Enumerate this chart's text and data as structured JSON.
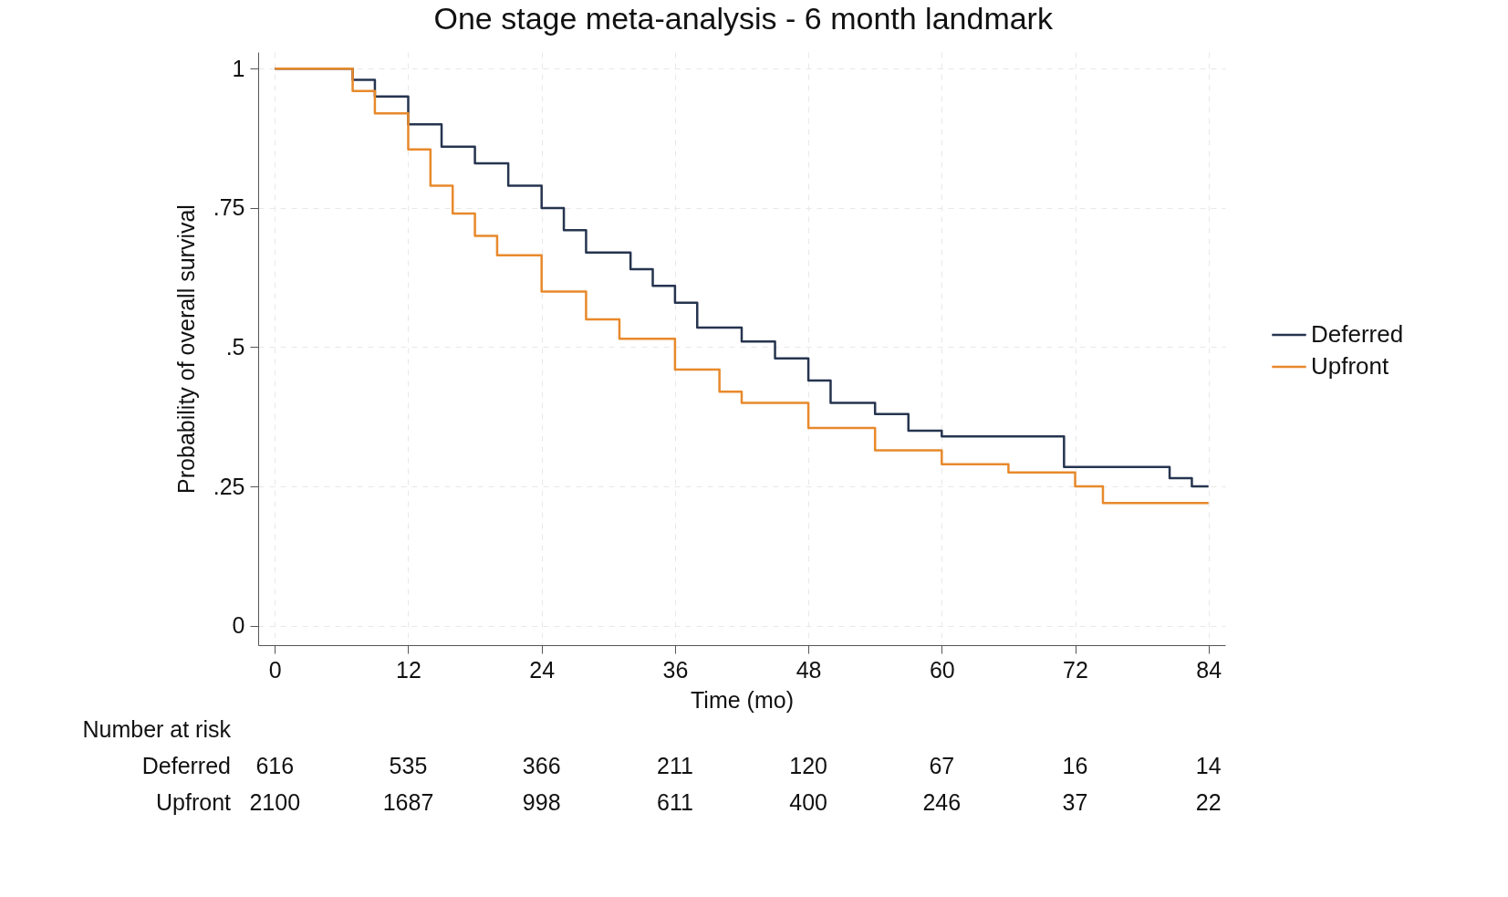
{
  "chart_data": {
    "type": "step",
    "title": "One stage meta-analysis - 6 month landmark",
    "xlabel": "Time (mo)",
    "ylabel": "Probability of overall survival",
    "series": [
      {
        "name": "Deferred",
        "color": "#26344f",
        "x": [
          0,
          6,
          7,
          9,
          12,
          15,
          18,
          21,
          24,
          26,
          28,
          32,
          34,
          36,
          38,
          42,
          45,
          48,
          50,
          54,
          57,
          60,
          70,
          71,
          80.5,
          82.5,
          84
        ],
        "values": [
          1,
          1,
          0.98,
          0.95,
          0.9,
          0.86,
          0.83,
          0.79,
          0.75,
          0.71,
          0.67,
          0.64,
          0.61,
          0.58,
          0.535,
          0.51,
          0.48,
          0.44,
          0.4,
          0.38,
          0.35,
          0.34,
          0.34,
          0.285,
          0.265,
          0.25,
          0.25
        ]
      },
      {
        "name": "Upfront",
        "color": "#e8892b",
        "x": [
          0,
          6,
          7,
          9,
          12,
          14,
          16,
          18,
          20,
          24,
          28,
          31,
          36,
          40,
          42,
          48,
          54,
          60,
          66,
          72,
          74.5,
          84
        ],
        "values": [
          1,
          1,
          0.96,
          0.92,
          0.855,
          0.79,
          0.74,
          0.7,
          0.665,
          0.6,
          0.55,
          0.515,
          0.46,
          0.42,
          0.4,
          0.355,
          0.315,
          0.29,
          0.275,
          0.25,
          0.22,
          0.22
        ]
      }
    ],
    "xlim": [
      -1.5,
      85.5
    ],
    "xticks": [
      0,
      12,
      24,
      36,
      48,
      60,
      72,
      84
    ],
    "ylim": [
      -0.035,
      1.03
    ],
    "yticks": [
      {
        "value": 0,
        "label": "0"
      },
      {
        "value": 0.25,
        "label": ".25"
      },
      {
        "value": 0.5,
        "label": ".5"
      },
      {
        "value": 0.75,
        "label": ".75"
      },
      {
        "value": 1,
        "label": "1"
      }
    ],
    "grid": true,
    "legend": "right",
    "line_style": "solid",
    "marker": "none",
    "annotations": [
      "Number at risk",
      "Deferred",
      "616",
      "535",
      "366",
      "211",
      "120",
      "67",
      "16",
      "14",
      "Upfront",
      "2100",
      "1687",
      "998",
      "611",
      "400",
      "246",
      "37",
      "22"
    ]
  }
}
